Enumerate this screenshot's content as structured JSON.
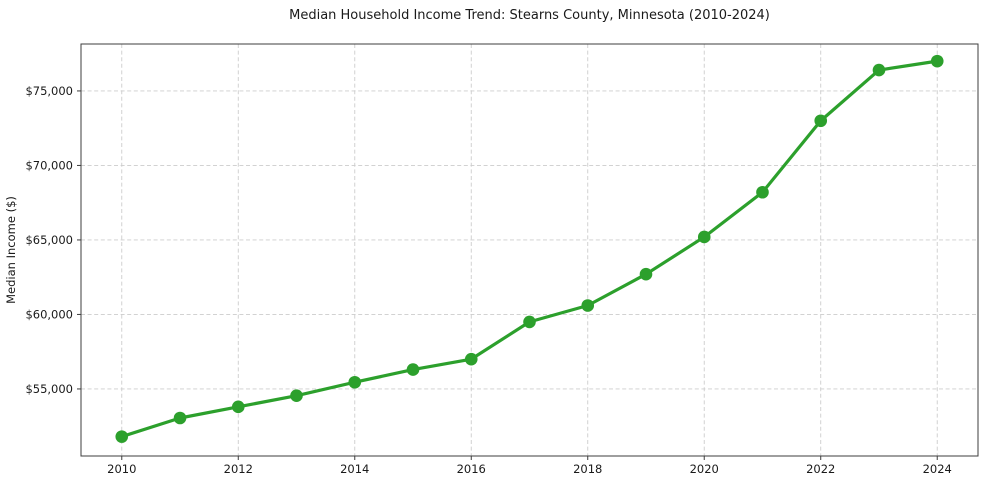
{
  "figure": {
    "title": "Median Household Income Trend: Stearns County, Minnesota (2010-2024)"
  },
  "chart_data": {
    "type": "line",
    "title": "Median Household Income Trend: Stearns County, Minnesota (2010-2024)",
    "xlabel": "",
    "ylabel": "Median Income ($)",
    "x": [
      2010,
      2011,
      2012,
      2013,
      2014,
      2015,
      2016,
      2017,
      2018,
      2019,
      2020,
      2021,
      2022,
      2023,
      2024
    ],
    "series": [
      {
        "name": "Median household income",
        "values": [
          51800,
          53050,
          53800,
          54550,
          55450,
          56300,
          57000,
          59500,
          60600,
          62700,
          65200,
          68200,
          73000,
          76400,
          77000
        ],
        "color": "#2ca02c",
        "marker": "circle"
      }
    ],
    "xticks": [
      2010,
      2012,
      2014,
      2016,
      2018,
      2020,
      2022,
      2024
    ],
    "xtick_labels": [
      "2010",
      "2012",
      "2014",
      "2016",
      "2018",
      "2020",
      "2022",
      "2024"
    ],
    "yticks": [
      55000,
      60000,
      65000,
      70000,
      75000
    ],
    "ytick_labels": [
      "$55,000",
      "$60,000",
      "$65,000",
      "$70,000",
      "$75,000"
    ],
    "xlim": [
      2009.3,
      2024.7
    ],
    "ylim": [
      50500,
      78150
    ],
    "grid": true,
    "grid_style": "dashed",
    "legend": "none"
  },
  "style": {
    "line_color": "#2ca02c",
    "marker_color": "#2ca02c",
    "grid_color": "#cccccc",
    "spine_color": "#3d3d3d",
    "tick_color": "#3d3d3d",
    "text_color": "#1a1a1a",
    "background": "#ffffff"
  }
}
